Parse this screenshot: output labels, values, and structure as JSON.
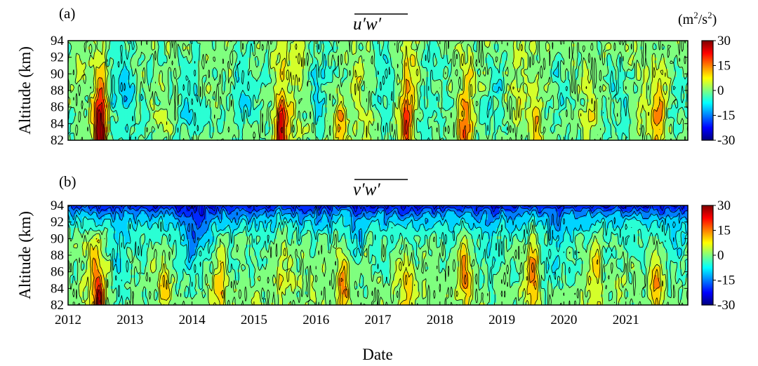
{
  "figure": {
    "xlabel": "Date",
    "units_label": "(m²/s²)"
  },
  "colorbar": {
    "range": [
      -30,
      30
    ],
    "ticks": [
      30,
      15,
      0,
      -15,
      -30
    ],
    "colormap": "jet",
    "stops": [
      "#00007f",
      "#0000ff",
      "#007fff",
      "#00ffff",
      "#7fff7f",
      "#ffff00",
      "#ff7f00",
      "#ff0000",
      "#7f0000"
    ]
  },
  "chart_data": [
    {
      "type": "heatmap",
      "panel_label": "(a)",
      "title": "u′w′ (overlined)",
      "title_parts": {
        "a": "u",
        "b": "w",
        "prime": "′"
      },
      "ylabel": "Altitude (km)",
      "xlabel": "Date",
      "xlim": [
        2012,
        2022
      ],
      "xticks": [
        "2012",
        "2013",
        "2014",
        "2015",
        "2016",
        "2017",
        "2018",
        "2019",
        "2020",
        "2021"
      ],
      "ylim": [
        82,
        94
      ],
      "yticks": [
        "82",
        "84",
        "86",
        "88",
        "90",
        "92",
        "94"
      ],
      "units": "m²/s²",
      "base_value": 0,
      "features": [
        {
          "t": 2012.52,
          "z": 82.0,
          "amp": 30,
          "st": 0.06,
          "sz": 3.5
        },
        {
          "t": 2012.52,
          "z": 87.0,
          "amp": 12,
          "st": 0.09,
          "sz": 4.5
        },
        {
          "t": 2012.9,
          "z": 88.0,
          "amp": -8,
          "st": 0.25,
          "sz": 5.0
        },
        {
          "t": 2013.1,
          "z": 91.0,
          "amp": 3,
          "st": 0.08,
          "sz": 2.0
        },
        {
          "t": 2013.5,
          "z": 84.0,
          "amp": 4,
          "st": 0.07,
          "sz": 2.5
        },
        {
          "t": 2013.95,
          "z": 87.0,
          "amp": -7,
          "st": 0.15,
          "sz": 4.0
        },
        {
          "t": 2014.35,
          "z": 85.0,
          "amp": 3,
          "st": 0.07,
          "sz": 2.5
        },
        {
          "t": 2014.85,
          "z": 88.0,
          "amp": -6,
          "st": 0.2,
          "sz": 4.0
        },
        {
          "t": 2015.45,
          "z": 82.5,
          "amp": 20,
          "st": 0.06,
          "sz": 2.5
        },
        {
          "t": 2015.45,
          "z": 87.0,
          "amp": 10,
          "st": 0.1,
          "sz": 4.0
        },
        {
          "t": 2015.75,
          "z": 90.0,
          "amp": 5,
          "st": 0.08,
          "sz": 3.0
        },
        {
          "t": 2016.05,
          "z": 88.0,
          "amp": -6,
          "st": 0.15,
          "sz": 4.0
        },
        {
          "t": 2016.4,
          "z": 84.0,
          "amp": 12,
          "st": 0.08,
          "sz": 2.5
        },
        {
          "t": 2016.65,
          "z": 88.0,
          "amp": 6,
          "st": 0.08,
          "sz": 4.0
        },
        {
          "t": 2016.85,
          "z": 83.0,
          "amp": 5,
          "st": 0.06,
          "sz": 2.0
        },
        {
          "t": 2017.1,
          "z": 88.0,
          "amp": -6,
          "st": 0.12,
          "sz": 4.0
        },
        {
          "t": 2017.45,
          "z": 83.5,
          "amp": 20,
          "st": 0.06,
          "sz": 2.5
        },
        {
          "t": 2017.5,
          "z": 89.0,
          "amp": 10,
          "st": 0.08,
          "sz": 4.0
        },
        {
          "t": 2017.9,
          "z": 87.0,
          "amp": -5,
          "st": 0.12,
          "sz": 4.0
        },
        {
          "t": 2018.4,
          "z": 83.5,
          "amp": 14,
          "st": 0.08,
          "sz": 2.5
        },
        {
          "t": 2018.45,
          "z": 89.0,
          "amp": 7,
          "st": 0.1,
          "sz": 4.0
        },
        {
          "t": 2018.85,
          "z": 86.0,
          "amp": -6,
          "st": 0.15,
          "sz": 4.0
        },
        {
          "t": 2019.3,
          "z": 88.0,
          "amp": 6,
          "st": 0.1,
          "sz": 4.0
        },
        {
          "t": 2019.55,
          "z": 84.0,
          "amp": 12,
          "st": 0.06,
          "sz": 2.5
        },
        {
          "t": 2019.95,
          "z": 86.0,
          "amp": -4,
          "st": 0.12,
          "sz": 4.0
        },
        {
          "t": 2020.4,
          "z": 85.0,
          "amp": 7,
          "st": 0.07,
          "sz": 2.5
        },
        {
          "t": 2020.85,
          "z": 88.0,
          "amp": -5,
          "st": 0.15,
          "sz": 4.0
        },
        {
          "t": 2021.3,
          "z": 86.0,
          "amp": 3,
          "st": 0.08,
          "sz": 2.0
        },
        {
          "t": 2021.5,
          "z": 84.0,
          "amp": 14,
          "st": 0.07,
          "sz": 2.5
        },
        {
          "t": 2021.55,
          "z": 88.0,
          "amp": 7,
          "st": 0.08,
          "sz": 3.0
        },
        {
          "t": 2021.85,
          "z": 87.0,
          "amp": -4,
          "st": 0.1,
          "sz": 3.0
        }
      ]
    },
    {
      "type": "heatmap",
      "panel_label": "(b)",
      "title": "v′w′ (overlined)",
      "title_parts": {
        "a": "v",
        "b": "w",
        "prime": "′"
      },
      "ylabel": "Altitude (km)",
      "xlabel": "Date",
      "xlim": [
        2012,
        2022
      ],
      "xticks": [
        "2012",
        "2013",
        "2014",
        "2015",
        "2016",
        "2017",
        "2018",
        "2019",
        "2020",
        "2021"
      ],
      "ylim": [
        82,
        94
      ],
      "yticks": [
        "82",
        "84",
        "86",
        "88",
        "90",
        "92",
        "94"
      ],
      "units": "m²/s²",
      "base_value": 0,
      "top_gradient": {
        "value": -22,
        "scale_km": 2.2
      },
      "features": [
        {
          "t": 2012.5,
          "z": 82.3,
          "amp": 22,
          "st": 0.05,
          "sz": 1.5
        },
        {
          "t": 2012.45,
          "z": 86.0,
          "amp": 14,
          "st": 0.1,
          "sz": 3.5
        },
        {
          "t": 2012.85,
          "z": 88.0,
          "amp": -5,
          "st": 0.12,
          "sz": 3.0
        },
        {
          "t": 2013.55,
          "z": 85.0,
          "amp": 10,
          "st": 0.06,
          "sz": 3.0
        },
        {
          "t": 2013.95,
          "z": 88.0,
          "amp": -6,
          "st": 0.15,
          "sz": 3.0
        },
        {
          "t": 2014.1,
          "z": 91.0,
          "amp": -9,
          "st": 0.15,
          "sz": 2.0
        },
        {
          "t": 2014.45,
          "z": 85.0,
          "amp": 12,
          "st": 0.06,
          "sz": 3.0
        },
        {
          "t": 2015.45,
          "z": 88.0,
          "amp": 6,
          "st": 0.08,
          "sz": 4.0
        },
        {
          "t": 2016.45,
          "z": 84.0,
          "amp": 14,
          "st": 0.08,
          "sz": 3.0
        },
        {
          "t": 2016.7,
          "z": 90.0,
          "amp": -5,
          "st": 0.1,
          "sz": 2.0
        },
        {
          "t": 2017.45,
          "z": 84.5,
          "amp": 12,
          "st": 0.07,
          "sz": 3.0
        },
        {
          "t": 2018.4,
          "z": 86.0,
          "amp": 14,
          "st": 0.07,
          "sz": 3.5
        },
        {
          "t": 2018.8,
          "z": 88.0,
          "amp": -6,
          "st": 0.12,
          "sz": 3.0
        },
        {
          "t": 2019.5,
          "z": 86.0,
          "amp": 18,
          "st": 0.05,
          "sz": 3.5
        },
        {
          "t": 2019.9,
          "z": 89.0,
          "amp": -8,
          "st": 0.12,
          "sz": 3.0
        },
        {
          "t": 2020.5,
          "z": 86.0,
          "amp": 12,
          "st": 0.07,
          "sz": 3.5
        },
        {
          "t": 2021.5,
          "z": 84.0,
          "amp": 16,
          "st": 0.06,
          "sz": 3.0
        },
        {
          "t": 2021.8,
          "z": 88.0,
          "amp": -5,
          "st": 0.1,
          "sz": 3.0
        }
      ]
    }
  ]
}
